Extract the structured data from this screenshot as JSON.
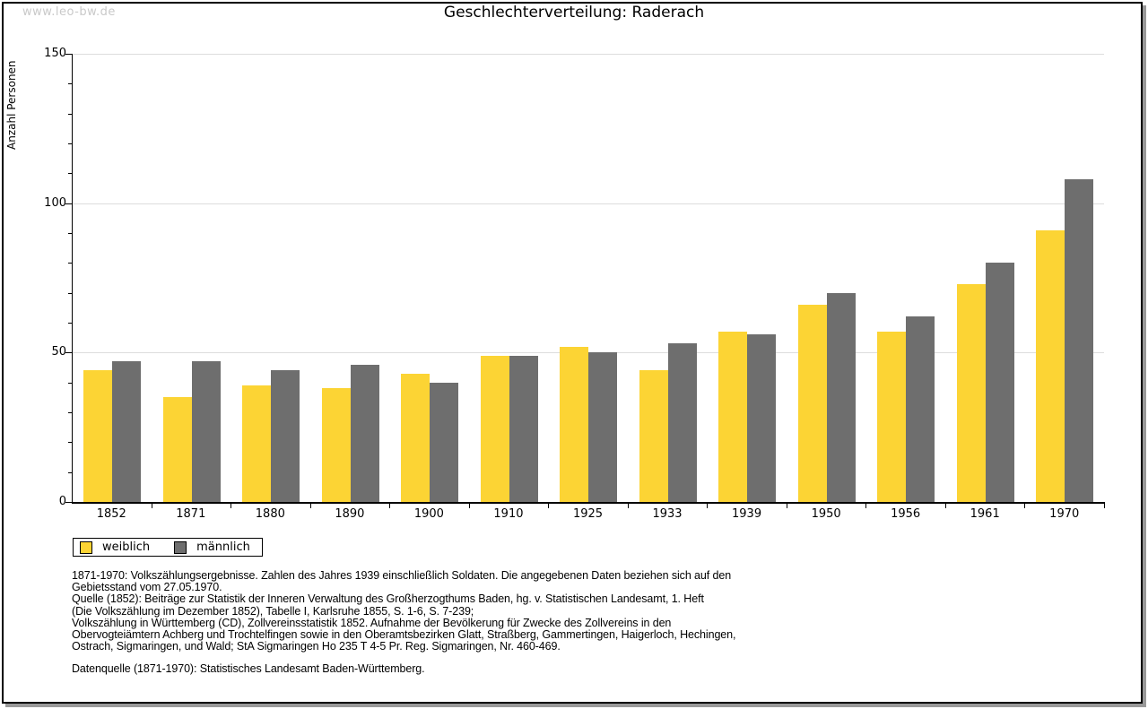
{
  "watermark": "www.leo-bw.de",
  "header": {
    "title": "Geschlechterverteilung: Raderach"
  },
  "chart_data": {
    "type": "bar",
    "title": "Geschlechterverteilung: Raderach",
    "xlabel": "",
    "ylabel": "Anzahl Personen",
    "categories": [
      "1852",
      "1871",
      "1880",
      "1890",
      "1900",
      "1910",
      "1925",
      "1933",
      "1939",
      "1950",
      "1956",
      "1961",
      "1970"
    ],
    "series": [
      {
        "name": "weiblich",
        "color": "#FCD434",
        "values": [
          44,
          35,
          39,
          38,
          43,
          49,
          52,
          44,
          57,
          66,
          57,
          73,
          91
        ]
      },
      {
        "name": "männlich",
        "color": "#6E6E6E",
        "values": [
          47,
          47,
          44,
          46,
          40,
          49,
          50,
          53,
          56,
          70,
          62,
          80,
          108
        ]
      }
    ],
    "ylim": [
      0,
      150
    ],
    "yticks": [
      0,
      50,
      100,
      150
    ],
    "minor_tick_step": 10,
    "grid": true,
    "legend_position": "below-left"
  },
  "footnotes": {
    "block1": [
      "1871-1970: Volkszählungsergebnisse. Zahlen des Jahres 1939 einschließlich Soldaten. Die angegebenen Daten beziehen sich auf den",
      "Gebietsstand vom 27.05.1970.",
      "Quelle (1852): Beiträge zur Statistik der Inneren Verwaltung des Großherzogthums Baden, hg. v. Statistischen Landesamt, 1. Heft",
      "(Die Volkszählung im Dezember 1852), Tabelle I, Karlsruhe 1855, S. 1-6, S. 7-239;",
      "Volkszählung in Württemberg (CD), Zollvereinsstatistik 1852. Aufnahme der Bevölkerung für Zwecke des Zollvereins in den",
      "Obervogteiämtern Achberg und Trochtelfingen sowie in den Oberamtsbezirken Glatt, Straßberg, Gammertingen, Haigerloch, Hechingen,",
      "Ostrach, Sigmaringen, und Wald; StA Sigmaringen Ho 235 T 4-5 Pr. Reg. Sigmaringen, Nr. 460-469."
    ],
    "datasource": "Datenquelle (1871-1970): Statistisches Landesamt Baden-Württemberg."
  },
  "colors": {
    "female": "#FCD434",
    "male": "#6E6E6E",
    "gridline": "#DDDDDD",
    "axis": "#000000",
    "watermark": "#C9C9C9",
    "frame_border": "#000000",
    "frame_shadow": "#999999"
  }
}
